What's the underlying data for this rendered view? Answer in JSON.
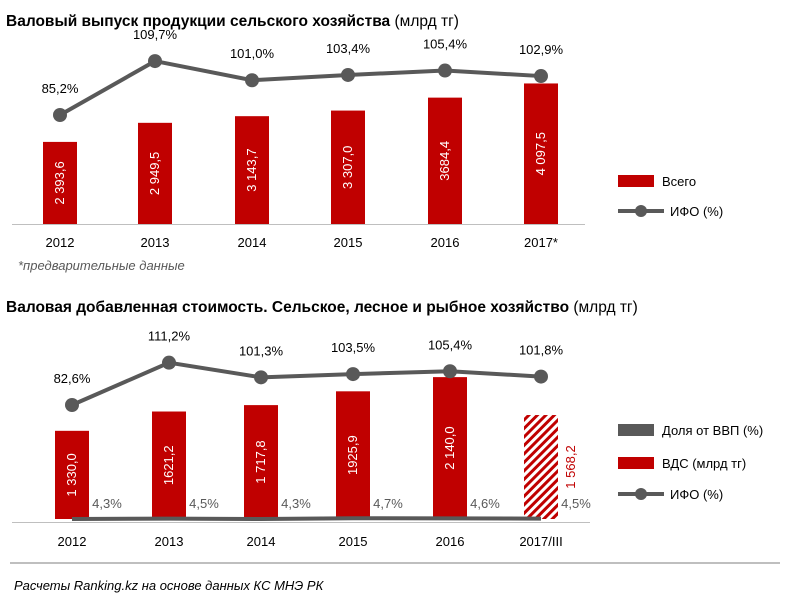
{
  "colors": {
    "bar": "#c00000",
    "line": "#595959",
    "share": "#595959",
    "axis": "#bfbfbf",
    "text": "#000000"
  },
  "footer": {
    "source": "Расчеты Ranking.kz на основе данных  КС МНЭ РК"
  },
  "chart_data": [
    {
      "type": "bar",
      "title": "Валовый выпуск продукции сельского хозяйства",
      "title_unit": "(млрд тг)",
      "categories": [
        "2012",
        "2013",
        "2014",
        "2015",
        "2016",
        "2017*"
      ],
      "series": [
        {
          "name": "Всего",
          "type": "bar",
          "values": [
            2393.6,
            2949.5,
            3143.7,
            3307.0,
            3684.4,
            4097.5
          ],
          "labels": [
            "2 393,6",
            "2 949,5",
            "3 143,7",
            "3 307,0",
            "3684,4",
            "4 097,5"
          ]
        },
        {
          "name": "ИФО (%)",
          "type": "line",
          "values": [
            85.2,
            109.7,
            101.0,
            103.4,
            105.4,
            102.9
          ],
          "labels": [
            "85,2%",
            "109,7%",
            "101,0%",
            "103,4%",
            "105,4%",
            "102,9%"
          ]
        }
      ],
      "footnote": "*предварительные данные"
    },
    {
      "type": "bar",
      "title": "Валовая добавленная стоимость. Сельское, лесное и рыбное хозяйство",
      "title_unit": "(млрд тг)",
      "categories": [
        "2012",
        "2013",
        "2014",
        "2015",
        "2016",
        "2017/III"
      ],
      "series": [
        {
          "name": "Доля от ВВП (%)",
          "type": "line",
          "values": [
            4.3,
            4.5,
            4.3,
            4.7,
            4.6,
            4.5
          ],
          "labels": [
            "4,3%",
            "4,5%",
            "4,3%",
            "4,7%",
            "4,6%",
            "4,5%"
          ]
        },
        {
          "name": "ВДС (млрд тг)",
          "type": "bar",
          "values": [
            1330.0,
            1621.2,
            1717.8,
            1925.9,
            2140.0,
            1568.2
          ],
          "labels": [
            "1 330,0",
            "1621,2",
            "1 717,8",
            "1925,9",
            "2 140,0",
            "1 568,2"
          ],
          "hatched_last": true
        },
        {
          "name": "ИФО (%)",
          "type": "line",
          "values": [
            82.6,
            111.2,
            101.3,
            103.5,
            105.4,
            101.8
          ],
          "labels": [
            "82,6%",
            "111,2%",
            "101,3%",
            "103,5%",
            "105,4%",
            "101,8%"
          ]
        }
      ]
    }
  ]
}
